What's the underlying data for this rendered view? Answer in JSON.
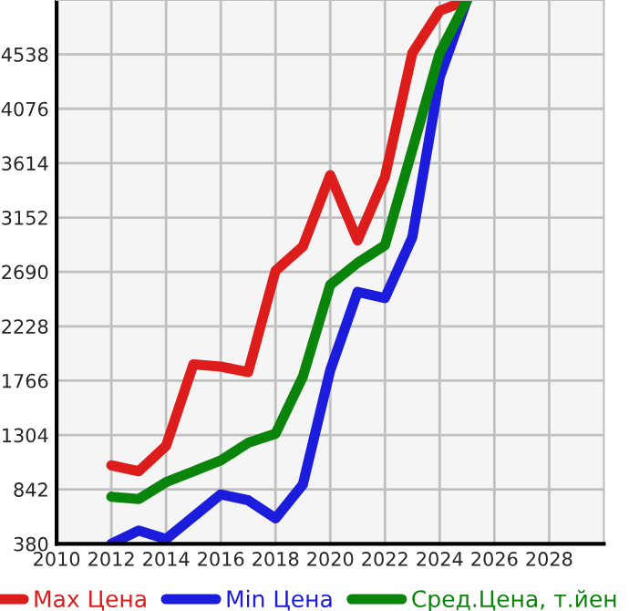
{
  "chart_data": {
    "type": "line",
    "x": [
      2012,
      2013,
      2014,
      2015,
      2016,
      2017,
      2018,
      2019,
      2020,
      2021,
      2022,
      2023,
      2024,
      2025
    ],
    "series": [
      {
        "name": "Max Цена",
        "color": "#dd1c1c",
        "values": [
          1047,
          996,
          1212,
          1905,
          1885,
          1839,
          2700,
          2906,
          3512,
          2958,
          3497,
          4548,
          4908,
          5000
        ]
      },
      {
        "name": "Min Цена",
        "color": "#1c1cdd",
        "values": [
          380,
          493,
          420,
          610,
          800,
          750,
          596,
          884,
          1854,
          2520,
          2468,
          2983,
          4343,
          5000
        ]
      },
      {
        "name": "Сред.Цена, т.йен",
        "color": "#0a840a",
        "values": [
          780,
          760,
          904,
          996,
          1088,
          1238,
          1315,
          1800,
          2580,
          2767,
          2916,
          3728,
          4548,
          5000
        ]
      }
    ],
    "xlim": [
      2010,
      2030
    ],
    "xticks": [
      2010,
      2012,
      2014,
      2016,
      2018,
      2020,
      2022,
      2024,
      2026,
      2028
    ],
    "ylim": [
      380,
      5000
    ],
    "yticks": [
      380,
      842,
      1304,
      1766,
      2228,
      2690,
      3152,
      3614,
      4076,
      4538
    ],
    "grid": true,
    "legend": "bottom",
    "marker": "none",
    "line_style": "solid"
  }
}
